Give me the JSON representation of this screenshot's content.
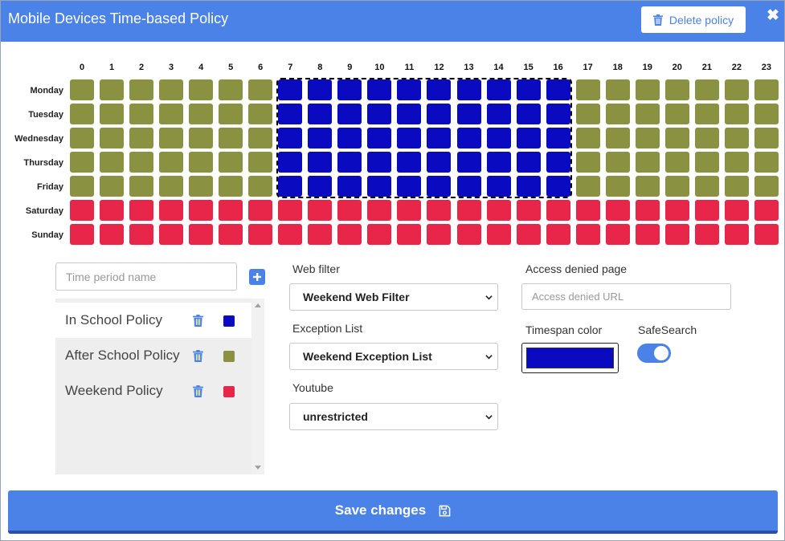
{
  "header": {
    "title": "Mobile Devices Time-based Policy",
    "delete_label": "Delete policy",
    "close_glyph": "✖"
  },
  "schedule": {
    "hours": [
      "0",
      "1",
      "2",
      "3",
      "4",
      "5",
      "6",
      "7",
      "8",
      "9",
      "10",
      "11",
      "12",
      "13",
      "14",
      "15",
      "16",
      "17",
      "18",
      "19",
      "20",
      "21",
      "22",
      "23"
    ],
    "days": [
      "Monday",
      "Tuesday",
      "Wednesday",
      "Thursday",
      "Friday",
      "Saturday",
      "Sunday"
    ],
    "grid": [
      [
        "after",
        "after",
        "after",
        "after",
        "after",
        "after",
        "after",
        "school",
        "school",
        "school",
        "school",
        "school",
        "school",
        "school",
        "school",
        "school",
        "school",
        "after",
        "after",
        "after",
        "after",
        "after",
        "after",
        "after"
      ],
      [
        "after",
        "after",
        "after",
        "after",
        "after",
        "after",
        "after",
        "school",
        "school",
        "school",
        "school",
        "school",
        "school",
        "school",
        "school",
        "school",
        "school",
        "after",
        "after",
        "after",
        "after",
        "after",
        "after",
        "after"
      ],
      [
        "after",
        "after",
        "after",
        "after",
        "after",
        "after",
        "after",
        "school",
        "school",
        "school",
        "school",
        "school",
        "school",
        "school",
        "school",
        "school",
        "school",
        "after",
        "after",
        "after",
        "after",
        "after",
        "after",
        "after"
      ],
      [
        "after",
        "after",
        "after",
        "after",
        "after",
        "after",
        "after",
        "school",
        "school",
        "school",
        "school",
        "school",
        "school",
        "school",
        "school",
        "school",
        "school",
        "after",
        "after",
        "after",
        "after",
        "after",
        "after",
        "after"
      ],
      [
        "after",
        "after",
        "after",
        "after",
        "after",
        "after",
        "after",
        "school",
        "school",
        "school",
        "school",
        "school",
        "school",
        "school",
        "school",
        "school",
        "school",
        "after",
        "after",
        "after",
        "after",
        "after",
        "after",
        "after"
      ],
      [
        "weekend",
        "weekend",
        "weekend",
        "weekend",
        "weekend",
        "weekend",
        "weekend",
        "weekend",
        "weekend",
        "weekend",
        "weekend",
        "weekend",
        "weekend",
        "weekend",
        "weekend",
        "weekend",
        "weekend",
        "weekend",
        "weekend",
        "weekend",
        "weekend",
        "weekend",
        "weekend",
        "weekend"
      ],
      [
        "weekend",
        "weekend",
        "weekend",
        "weekend",
        "weekend",
        "weekend",
        "weekend",
        "weekend",
        "weekend",
        "weekend",
        "weekend",
        "weekend",
        "weekend",
        "weekend",
        "weekend",
        "weekend",
        "weekend",
        "weekend",
        "weekend",
        "weekend",
        "weekend",
        "weekend",
        "weekend",
        "weekend"
      ]
    ],
    "selected_range": {
      "first_day": "Monday",
      "last_day": "Friday",
      "first_hour": "7",
      "last_hour": "16"
    }
  },
  "colors": {
    "accent": "#4a82e8",
    "school": "#0a0ac0",
    "after": "#8a9141",
    "weekend": "#e8264a"
  },
  "policy_panel": {
    "name_placeholder": "Time period name",
    "add_icon": "plus-icon",
    "policies": [
      {
        "name": "In School Policy",
        "color_key": "school",
        "active": true
      },
      {
        "name": "After School Policy",
        "color_key": "after",
        "active": false
      },
      {
        "name": "Weekend Policy",
        "color_key": "weekend",
        "active": false
      }
    ]
  },
  "settings": {
    "web_filter_label": "Web filter",
    "web_filter_value": "Weekend Web Filter",
    "exception_label": "Exception List",
    "exception_value": "Weekend Exception List",
    "youtube_label": "Youtube",
    "youtube_value": "unrestricted",
    "access_denied_label": "Access denied page",
    "access_denied_placeholder": "Access denied URL",
    "timespan_color_label": "Timespan color",
    "timespan_color": "#0a0ac0",
    "safesearch_label": "SafeSearch",
    "safesearch_on": true
  },
  "footer": {
    "save_label": "Save changes",
    "save_icon": "floppy-disk-icon"
  }
}
